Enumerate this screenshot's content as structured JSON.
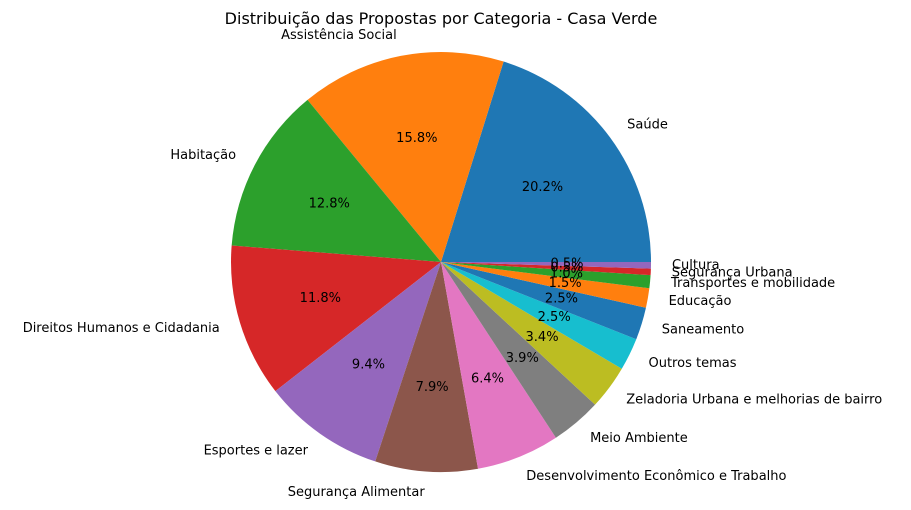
{
  "chart_data": {
    "type": "pie",
    "title": "Distribuição das Propostas por Categoria - Casa Verde",
    "start_angle_deg": 0,
    "direction": "counterclockwise",
    "slices": [
      {
        "label": "Saúde",
        "value": 20.2,
        "pct_label": "20.2%",
        "color": "#1f77b4"
      },
      {
        "label": "Assistência Social",
        "value": 15.8,
        "pct_label": "15.8%",
        "color": "#ff7f0e"
      },
      {
        "label": "Habitação",
        "value": 12.8,
        "pct_label": "12.8%",
        "color": "#2ca02c"
      },
      {
        "label": "Direitos Humanos e Cidadania",
        "value": 11.8,
        "pct_label": "11.8%",
        "color": "#d62728"
      },
      {
        "label": "Esportes e lazer",
        "value": 9.4,
        "pct_label": "9.4%",
        "color": "#9467bd"
      },
      {
        "label": "Segurança Alimentar",
        "value": 7.9,
        "pct_label": "7.9%",
        "color": "#8c564b"
      },
      {
        "label": "Desenvolvimento Econômico e Trabalho",
        "value": 6.4,
        "pct_label": "6.4%",
        "color": "#e377c2"
      },
      {
        "label": "Meio Ambiente",
        "value": 3.9,
        "pct_label": "3.9%",
        "color": "#7f7f7f"
      },
      {
        "label": "Zeladoria Urbana e melhorias de bairro",
        "value": 3.4,
        "pct_label": "3.4%",
        "color": "#bcbd22"
      },
      {
        "label": "Outros temas",
        "value": 2.5,
        "pct_label": "2.5%",
        "color": "#17becf"
      },
      {
        "label": "Saneamento",
        "value": 2.5,
        "pct_label": "2.5%",
        "color": "#1f77b4"
      },
      {
        "label": "Educação",
        "value": 1.5,
        "pct_label": "1.5%",
        "color": "#ff7f0e"
      },
      {
        "label": "Transportes e mobilidade",
        "value": 1.0,
        "pct_label": "1.0%",
        "color": "#2ca02c"
      },
      {
        "label": "Segurança Urbana",
        "value": 0.5,
        "pct_label": "0.5%",
        "color": "#d62728"
      },
      {
        "label": "Cultura",
        "value": 0.5,
        "pct_label": "0.5%",
        "color": "#9467bd"
      }
    ]
  }
}
